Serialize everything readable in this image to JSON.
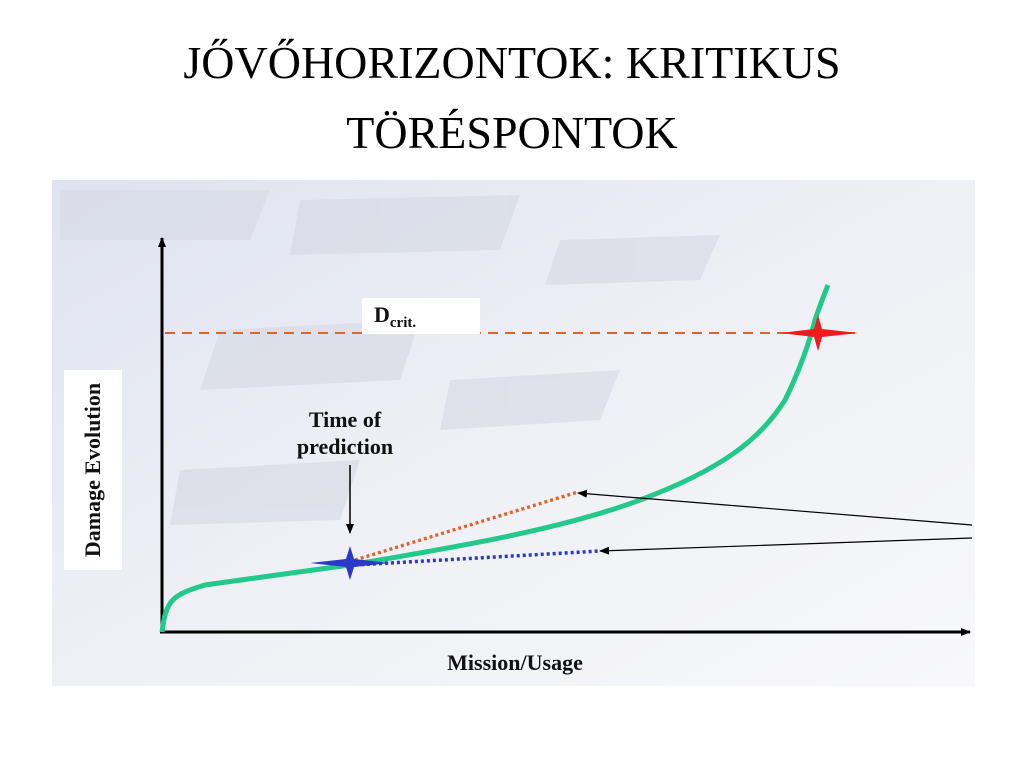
{
  "header": {
    "title_lines": [
      "JŐVŐHORIZONTOK: KRITIKUS",
      "TÖRÉSPONTOK"
    ]
  },
  "diagram": {
    "threshold_label": {
      "main": "D",
      "subscript": "crit."
    },
    "prediction_label_lines": [
      "Time of",
      "prediction"
    ],
    "y_axis_label": "Damage Evolution",
    "x_axis_label": "Mission/Usage"
  }
}
